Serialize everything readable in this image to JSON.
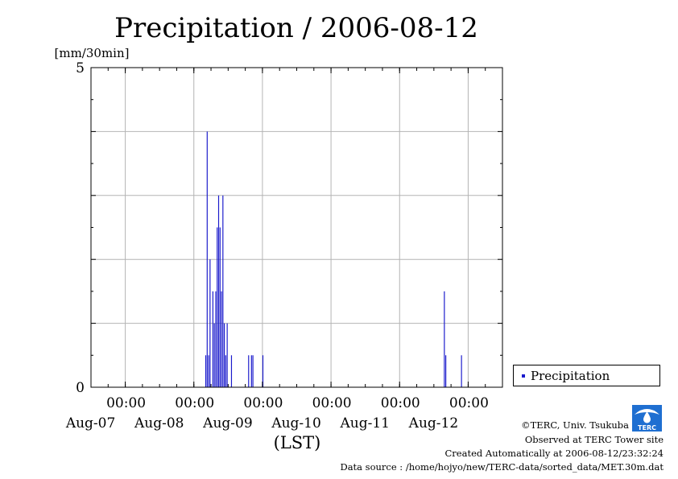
{
  "chart_data": {
    "type": "bar",
    "title": "Precipitation / 2006-08-12",
    "ylabel": "[mm/30min]",
    "xlabel": "(LST)",
    "ylim": [
      0,
      5
    ],
    "y_ticks": [
      "0",
      "5"
    ],
    "x_start": "2006-08-06T12:00",
    "x_end": "2006-08-12T12:00",
    "x_ticks": [
      {
        "time": "2006-08-07T00:00",
        "hour": "00:00",
        "date": "Aug-07"
      },
      {
        "time": "2006-08-08T00:00",
        "hour": "00:00",
        "date": "Aug-08"
      },
      {
        "time": "2006-08-09T00:00",
        "hour": "00:00",
        "date": "Aug-09"
      },
      {
        "time": "2006-08-10T00:00",
        "hour": "00:00",
        "date": "Aug-10"
      },
      {
        "time": "2006-08-11T00:00",
        "hour": "00:00",
        "date": "Aug-11"
      },
      {
        "time": "2006-08-12T00:00",
        "hour": "00:00",
        "date": "Aug-12"
      }
    ],
    "grid": true,
    "legend_position": "bottom-right",
    "series": [
      {
        "name": "Precipitation",
        "color": "#1a1acc",
        "points": [
          [
            "2006-08-08T04:00",
            0.5
          ],
          [
            "2006-08-08T04:30",
            4.0
          ],
          [
            "2006-08-08T05:00",
            0.5
          ],
          [
            "2006-08-08T05:30",
            2.0
          ],
          [
            "2006-08-08T06:30",
            1.5
          ],
          [
            "2006-08-08T07:00",
            1.0
          ],
          [
            "2006-08-08T07:30",
            1.5
          ],
          [
            "2006-08-08T08:00",
            2.5
          ],
          [
            "2006-08-08T08:30",
            3.0
          ],
          [
            "2006-08-08T09:00",
            2.5
          ],
          [
            "2006-08-08T09:30",
            1.5
          ],
          [
            "2006-08-08T10:00",
            3.0
          ],
          [
            "2006-08-08T10:30",
            1.0
          ],
          [
            "2006-08-08T11:00",
            0.5
          ],
          [
            "2006-08-08T11:30",
            1.0
          ],
          [
            "2006-08-08T13:00",
            0.5
          ],
          [
            "2006-08-08T19:00",
            0.5
          ],
          [
            "2006-08-08T20:00",
            0.5
          ],
          [
            "2006-08-08T20:30",
            0.5
          ],
          [
            "2006-08-09T00:00",
            0.5
          ],
          [
            "2006-08-11T15:30",
            1.5
          ],
          [
            "2006-08-11T16:00",
            0.5
          ],
          [
            "2006-08-11T21:30",
            0.5
          ]
        ]
      }
    ]
  },
  "legend": {
    "label": "Precipitation"
  },
  "footer": {
    "copyright": "©TERC, Univ. Tsukuba",
    "observed": "Observed at TERC Tower site",
    "created": "Created Automatically at 2006-08-12/23:32:24",
    "source": "Data source : /home/hojyo/new/TERC-data/sorted_data/MET.30m.dat"
  },
  "logo": {
    "icon": "terc-logo-icon",
    "text": "TERC",
    "color": "#1f6fd1"
  }
}
